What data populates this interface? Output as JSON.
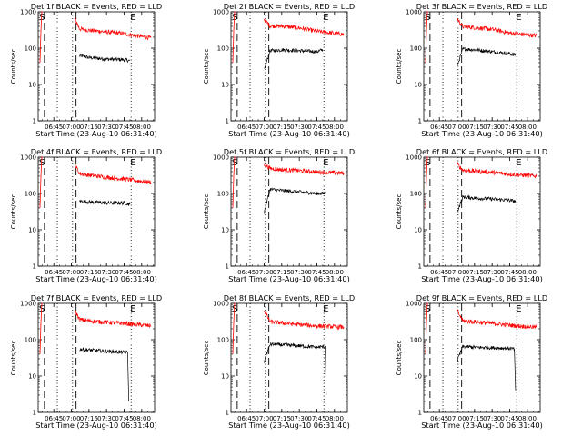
{
  "figure": {
    "xlabel": "Start Time (23-Aug-10 06:31:40)",
    "ylabel": "Counts/sec",
    "x_ticks": [
      "06:45",
      "07:00",
      "07:15",
      "07:30",
      "07:45",
      "08:00"
    ],
    "y_ticks": [
      "1",
      "10",
      "100",
      "1000"
    ],
    "marker_start": "S",
    "marker_end": "E"
  },
  "chart_data": [
    {
      "type": "line",
      "title": "Det 1f BLACK = Events, RED = LLD",
      "xlabel": "Start Time (23-Aug-10 06:31:40)",
      "ylabel": "Counts/sec",
      "y_scale": "log",
      "ylim": [
        1,
        1000
      ],
      "xlim": [
        "06:31:40",
        "08:11"
      ],
      "series": [
        {
          "name": "BLACK = Events",
          "color": "#000000",
          "x": [
            "07:07",
            "07:15",
            "07:30",
            "07:45",
            "07:50"
          ],
          "y": [
            62,
            55,
            50,
            48,
            45
          ]
        },
        {
          "name": "RED = LLD",
          "color": "#ff0000",
          "x": [
            "07:03",
            "07:07",
            "07:15",
            "07:30",
            "07:45",
            "08:08"
          ],
          "y": [
            650,
            340,
            310,
            280,
            250,
            190
          ]
        }
      ]
    },
    {
      "type": "line",
      "title": "Det 2f BLACK = Events, RED = LLD",
      "xlabel": "Start Time (23-Aug-10 06:31:40)",
      "ylabel": "Counts/sec",
      "y_scale": "log",
      "ylim": [
        1,
        1000
      ],
      "xlim": [
        "06:31:40",
        "08:11"
      ],
      "series": [
        {
          "name": "BLACK = Events",
          "color": "#000000",
          "x": [
            "07:00",
            "07:05",
            "07:15",
            "07:30",
            "07:45",
            "07:50"
          ],
          "y": [
            25,
            85,
            90,
            85,
            80,
            90
          ]
        },
        {
          "name": "RED = LLD",
          "color": "#ff0000",
          "x": [
            "07:00",
            "07:05",
            "07:15",
            "07:30",
            "07:45",
            "08:08"
          ],
          "y": [
            620,
            410,
            400,
            360,
            290,
            240
          ]
        }
      ]
    },
    {
      "type": "line",
      "title": "Det 3f BLACK = Events, RED = LLD",
      "xlabel": "Start Time (23-Aug-10 06:31:40)",
      "ylabel": "Counts/sec",
      "y_scale": "log",
      "ylim": [
        1,
        1000
      ],
      "xlim": [
        "06:31:40",
        "08:11"
      ],
      "series": [
        {
          "name": "BLACK = Events",
          "color": "#000000",
          "x": [
            "07:00",
            "07:05",
            "07:15",
            "07:30",
            "07:45",
            "07:50"
          ],
          "y": [
            30,
            95,
            90,
            80,
            70,
            65
          ]
        },
        {
          "name": "RED = LLD",
          "color": "#ff0000",
          "x": [
            "07:00",
            "07:05",
            "07:15",
            "07:30",
            "07:45",
            "08:08"
          ],
          "y": [
            650,
            390,
            370,
            330,
            260,
            220
          ]
        }
      ]
    },
    {
      "type": "line",
      "title": "Det 4f BLACK = Events, RED = LLD",
      "xlabel": "Start Time (23-Aug-10 06:31:40)",
      "ylabel": "Counts/sec",
      "y_scale": "log",
      "ylim": [
        1,
        1000
      ],
      "xlim": [
        "06:31:40",
        "08:11"
      ],
      "series": [
        {
          "name": "BLACK = Events",
          "color": "#000000",
          "x": [
            "07:07",
            "07:15",
            "07:30",
            "07:45",
            "07:50"
          ],
          "y": [
            62,
            58,
            55,
            55,
            50
          ]
        },
        {
          "name": "RED = LLD",
          "color": "#ff0000",
          "x": [
            "07:03",
            "07:07",
            "07:15",
            "07:30",
            "07:45",
            "08:08"
          ],
          "y": [
            640,
            350,
            320,
            280,
            250,
            200
          ]
        }
      ]
    },
    {
      "type": "line",
      "title": "Det 5f BLACK = Events, RED = LLD",
      "xlabel": "Start Time (23-Aug-10 06:31:40)",
      "ylabel": "Counts/sec",
      "y_scale": "log",
      "ylim": [
        1,
        1000
      ],
      "xlim": [
        "06:31:40",
        "08:11"
      ],
      "series": [
        {
          "name": "BLACK = Events",
          "color": "#000000",
          "x": [
            "07:00",
            "07:05",
            "07:15",
            "07:30",
            "07:45",
            "07:52"
          ],
          "y": [
            30,
            130,
            120,
            110,
            100,
            100
          ]
        },
        {
          "name": "RED = LLD",
          "color": "#ff0000",
          "x": [
            "07:00",
            "07:05",
            "07:15",
            "07:30",
            "07:45",
            "08:08"
          ],
          "y": [
            650,
            490,
            450,
            420,
            390,
            360
          ]
        }
      ]
    },
    {
      "type": "line",
      "title": "Det 6f BLACK = Events, RED = LLD",
      "xlabel": "Start Time (23-Aug-10 06:31:40)",
      "ylabel": "Counts/sec",
      "y_scale": "log",
      "ylim": [
        1,
        1000
      ],
      "xlim": [
        "06:31:40",
        "08:11"
      ],
      "series": [
        {
          "name": "BLACK = Events",
          "color": "#000000",
          "x": [
            "07:00",
            "07:05",
            "07:15",
            "07:30",
            "07:45",
            "07:50"
          ],
          "y": [
            30,
            80,
            75,
            70,
            65,
            60
          ]
        },
        {
          "name": "RED = LLD",
          "color": "#ff0000",
          "x": [
            "07:00",
            "07:05",
            "07:15",
            "07:30",
            "07:45",
            "08:08"
          ],
          "y": [
            650,
            440,
            410,
            380,
            340,
            300
          ]
        }
      ]
    },
    {
      "type": "line",
      "title": "Det 7f BLACK = Events, RED = LLD",
      "xlabel": "Start Time (23-Aug-10 06:31:40)",
      "ylabel": "Counts/sec",
      "y_scale": "log",
      "ylim": [
        1,
        1000
      ],
      "xlim": [
        "06:31:40",
        "08:11"
      ],
      "series": [
        {
          "name": "BLACK = Events",
          "color": "#000000",
          "x": [
            "07:07",
            "07:15",
            "07:30",
            "07:45",
            "07:48",
            "07:49"
          ],
          "y": [
            55,
            52,
            48,
            45,
            45,
            2
          ]
        },
        {
          "name": "RED = LLD",
          "color": "#ff0000",
          "x": [
            "07:03",
            "07:07",
            "07:15",
            "07:30",
            "07:45",
            "08:08"
          ],
          "y": [
            640,
            360,
            330,
            300,
            280,
            240
          ]
        }
      ]
    },
    {
      "type": "line",
      "title": "Det 8f BLACK = Events, RED = LLD",
      "xlabel": "Start Time (23-Aug-10 06:31:40)",
      "ylabel": "Counts/sec",
      "y_scale": "log",
      "ylim": [
        1,
        1000
      ],
      "xlim": [
        "06:31:40",
        "08:11"
      ],
      "series": [
        {
          "name": "BLACK = Events",
          "color": "#000000",
          "x": [
            "07:00",
            "07:05",
            "07:15",
            "07:30",
            "07:45",
            "07:52",
            "07:53"
          ],
          "y": [
            25,
            75,
            72,
            68,
            62,
            65,
            3
          ]
        },
        {
          "name": "RED = LLD",
          "color": "#ff0000",
          "x": [
            "07:00",
            "07:05",
            "07:15",
            "07:30",
            "07:45",
            "08:08"
          ],
          "y": [
            640,
            310,
            290,
            260,
            240,
            220
          ]
        }
      ]
    },
    {
      "type": "line",
      "title": "Det 9f BLACK = Events, RED = LLD",
      "xlabel": "Start Time (23-Aug-10 06:31:40)",
      "ylabel": "Counts/sec",
      "y_scale": "log",
      "ylim": [
        1,
        1000
      ],
      "xlim": [
        "06:31:40",
        "08:11"
      ],
      "series": [
        {
          "name": "BLACK = Events",
          "color": "#000000",
          "x": [
            "07:00",
            "07:05",
            "07:15",
            "07:30",
            "07:45",
            "07:49",
            "07:50"
          ],
          "y": [
            25,
            65,
            62,
            60,
            58,
            55,
            4
          ]
        },
        {
          "name": "RED = LLD",
          "color": "#ff0000",
          "x": [
            "07:00",
            "07:05",
            "07:15",
            "07:30",
            "07:45",
            "08:08"
          ],
          "y": [
            640,
            330,
            310,
            280,
            250,
            220
          ]
        }
      ]
    }
  ]
}
